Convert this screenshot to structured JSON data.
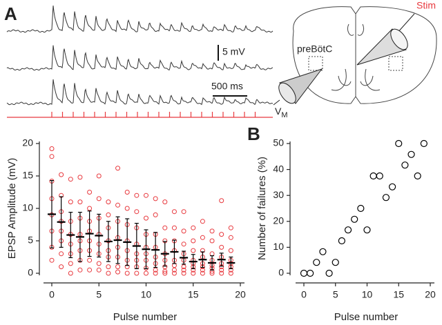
{
  "panel_a": {
    "label": "A",
    "scale_bar_voltage": "5 mV",
    "scale_bar_time": "500 ms",
    "diagram": {
      "region": "preBötC",
      "stim": "Stim",
      "recording": {
        "symbol": "V",
        "subscript": "M"
      }
    }
  },
  "chart_data": [
    {
      "type": "scatter",
      "y_label": "EPSP Amplitude (mV)",
      "x_label": "Pulse number",
      "xlim": [
        0,
        20
      ],
      "ylim": [
        0,
        20
      ],
      "xticks": [
        0,
        5,
        10,
        15,
        20
      ],
      "yticks": [
        0,
        5,
        10,
        15,
        20
      ],
      "points_color": "#e8383d",
      "mean_color": "#000000",
      "points": [
        {
          "x": 0,
          "values": [
            19.2,
            18.0,
            14.2,
            11.5,
            9.0,
            6.5,
            4.0,
            2.0
          ]
        },
        {
          "x": 1,
          "values": [
            15.2,
            12.0,
            9.5,
            8.0,
            6.5,
            5.0,
            3.0,
            1.0
          ]
        },
        {
          "x": 2,
          "values": [
            14.5,
            11.0,
            8.0,
            6.0,
            4.5,
            3.0,
            1.5,
            0
          ]
        },
        {
          "x": 3,
          "values": [
            14.8,
            11.0,
            8.5,
            6.0,
            5.0,
            3.5,
            2.0,
            0.5
          ]
        },
        {
          "x": 4,
          "values": [
            12.5,
            10.0,
            8.0,
            6.5,
            5.0,
            3.5,
            2.0,
            0.5
          ]
        },
        {
          "x": 5,
          "values": [
            15.0,
            11.5,
            8.5,
            6.0,
            4.5,
            3.0,
            1.5,
            0.5
          ]
        },
        {
          "x": 6,
          "values": [
            11.0,
            9.0,
            7.0,
            5.0,
            3.5,
            2.5,
            1.0,
            0
          ]
        },
        {
          "x": 7,
          "values": [
            16.2,
            10.5,
            8.0,
            5.5,
            4.0,
            2.5,
            1.0,
            0.2
          ]
        },
        {
          "x": 8,
          "values": [
            12.5,
            10.0,
            7.5,
            5.0,
            3.5,
            2.0,
            1.0,
            0
          ]
        },
        {
          "x": 9,
          "values": [
            12.0,
            9.5,
            7.0,
            4.5,
            3.0,
            2.0,
            1.0,
            0
          ]
        },
        {
          "x": 10,
          "values": [
            12.0,
            8.5,
            6.0,
            4.0,
            3.0,
            2.0,
            0.8,
            0
          ]
        },
        {
          "x": 11,
          "values": [
            11.5,
            9.0,
            6.0,
            4.0,
            2.5,
            1.5,
            0.5,
            0
          ]
        },
        {
          "x": 12,
          "values": [
            11.0,
            7.0,
            5.0,
            3.0,
            2.0,
            1.0,
            0.3,
            0
          ]
        },
        {
          "x": 13,
          "values": [
            9.5,
            7.0,
            5.0,
            3.5,
            2.0,
            1.2,
            0.5,
            0
          ]
        },
        {
          "x": 14,
          "values": [
            9.5,
            6.5,
            4.5,
            3.0,
            2.0,
            1.0,
            0.5,
            0
          ]
        },
        {
          "x": 15,
          "values": [
            7.0,
            5.0,
            3.5,
            2.0,
            1.5,
            1.0,
            0.5,
            0
          ]
        },
        {
          "x": 16,
          "values": [
            8.0,
            5.5,
            3.5,
            2.5,
            1.5,
            1.0,
            0.5,
            0
          ]
        },
        {
          "x": 17,
          "values": [
            6.5,
            5.0,
            3.0,
            2.0,
            1.2,
            0.8,
            0.3,
            0
          ]
        },
        {
          "x": 18,
          "values": [
            11.2,
            6.0,
            4.0,
            2.5,
            1.5,
            1.0,
            0.5,
            0
          ]
        },
        {
          "x": 19,
          "values": [
            7.0,
            5.5,
            3.5,
            2.0,
            1.5,
            1.0,
            0.5,
            0
          ]
        }
      ],
      "x": [
        0,
        1,
        2,
        3,
        4,
        5,
        6,
        7,
        8,
        9,
        10,
        11,
        12,
        13,
        14,
        15,
        16,
        17,
        18,
        19
      ],
      "values": [
        9.1,
        7.9,
        5.9,
        5.6,
        6.1,
        5.8,
        4.9,
        5.1,
        4.8,
        4.2,
        3.7,
        3.6,
        3.0,
        3.3,
        2.4,
        1.8,
        2.1,
        1.6,
        2.1,
        1.6
      ],
      "errors": [
        5.2,
        3.9,
        3.5,
        3.8,
        3.5,
        3.3,
        3.1,
        3.6,
        3.6,
        3.5,
        3.0,
        2.7,
        1.9,
        1.8,
        1.0,
        1.1,
        1.2,
        1.1,
        1.0,
        0.9
      ]
    },
    {
      "type": "scatter",
      "panel_label": "B",
      "y_label": "Number of failures (%)",
      "x_label": "Pulse number",
      "xlim": [
        0,
        20
      ],
      "ylim": [
        0,
        50
      ],
      "xticks": [
        0,
        5,
        10,
        15,
        20
      ],
      "yticks": [
        0,
        10,
        20,
        30,
        40,
        50
      ],
      "mean_color": "#000000",
      "x": [
        0,
        1,
        2,
        3,
        4,
        5,
        6,
        7,
        8,
        9,
        10,
        11,
        12,
        13,
        14,
        15,
        16,
        17,
        18,
        19
      ],
      "values": [
        0,
        0,
        4.2,
        8.3,
        0,
        4.2,
        12.5,
        16.7,
        20.8,
        25,
        16.7,
        37.5,
        37.5,
        29.2,
        33.3,
        50,
        41.7,
        45.8,
        37.5,
        50
      ]
    }
  ]
}
